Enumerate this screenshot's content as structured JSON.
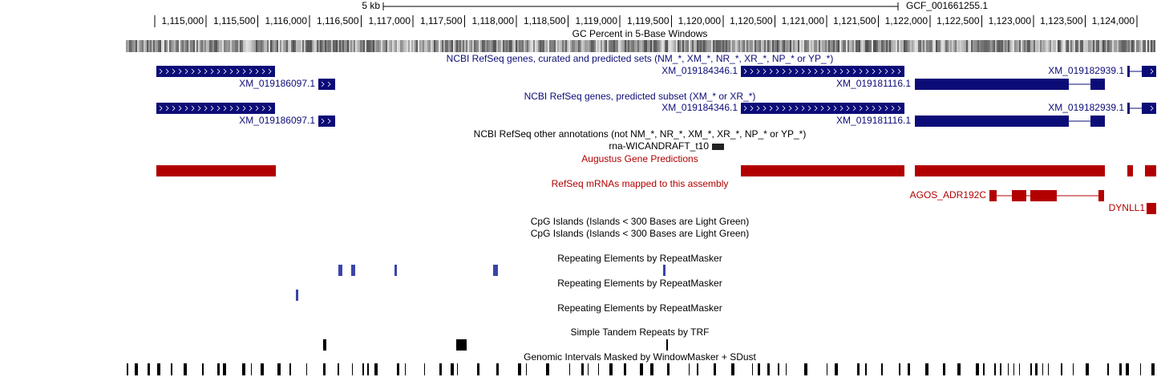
{
  "scale": {
    "label": "5 kb",
    "assembly": "GCF_001661255.1"
  },
  "ruler": {
    "ticks": [
      "1,115,000",
      "1,115,500",
      "1,116,000",
      "1,116,500",
      "1,117,000",
      "1,117,500",
      "1,118,000",
      "1,118,500",
      "1,119,000",
      "1,119,500",
      "1,120,000",
      "1,120,500",
      "1,121,000",
      "1,121,500",
      "1,122,000",
      "1,122,500",
      "1,123,000",
      "1,123,500",
      "1,124,000"
    ]
  },
  "tracks": [
    {
      "title": "GC Percent in 5-Base Windows"
    },
    {
      "title": "NCBI RefSeq genes, curated and predicted sets (NM_*, XM_*, NR_*, XR_*, NP_* or YP_*)",
      "items": [
        "XM_019184346.1",
        "XM_019182939.1",
        "XM_019186097.1",
        "XM_019181116.1"
      ]
    },
    {
      "title": "NCBI RefSeq genes, predicted subset (XM_* or XR_*)",
      "items": [
        "XM_019184346.1",
        "XM_019182939.1",
        "XM_019186097.1",
        "XM_019181116.1"
      ]
    },
    {
      "title": "NCBI RefSeq other annotations (not NM_*, NR_*, XM_*, XR_*, NP_* or YP_*)",
      "items": [
        "rna-WICANDRAFT_t10"
      ]
    },
    {
      "title": "Augustus Gene Predictions"
    },
    {
      "title": "RefSeq mRNAs mapped to this assembly",
      "items": [
        "AGOS_ADR192C",
        "DYNLL1"
      ]
    },
    {
      "title": "CpG Islands (Islands < 300 Bases are Light Green)"
    },
    {
      "title": "CpG Islands (Islands < 300 Bases are Light Green)"
    },
    {
      "title": "Repeating Elements by RepeatMasker"
    },
    {
      "title": "Repeating Elements by RepeatMasker"
    },
    {
      "title": "Repeating Elements by RepeatMasker"
    },
    {
      "title": "Simple Tandem Repeats by TRF"
    },
    {
      "title": "Genomic Intervals Masked by WindowMasker + SDust"
    }
  ]
}
